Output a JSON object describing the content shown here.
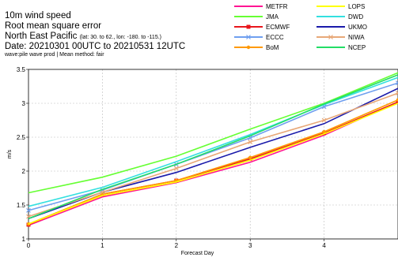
{
  "header": {
    "line1": "10m wind speed",
    "line2": "Root mean square error",
    "region": "North East Pacific",
    "region_detail": "(lat: 30. to 62., lon: -180. to -115.)",
    "date": "Date: 20210301 00UTC to 20210531 12UTC",
    "note": "wave:pile wave prod | Mean method: fair"
  },
  "chart_data": {
    "type": "line",
    "xlabel": "Forecast Day",
    "ylabel": "m/s",
    "xlim": [
      0,
      5
    ],
    "ylim": [
      1,
      3.5
    ],
    "xticks": [
      "0",
      "1",
      "2",
      "3",
      "4"
    ],
    "yticks": [
      "1",
      "1.5",
      "2",
      "2.5",
      "3",
      "3.5"
    ],
    "grid": true,
    "legend_position": "top-right",
    "x": [
      0,
      1,
      2,
      3,
      4,
      5
    ],
    "series": [
      {
        "name": "METFR",
        "color": "#ff1493",
        "marker": "none",
        "values": [
          1.2,
          1.62,
          1.83,
          2.13,
          2.53,
          3.02
        ]
      },
      {
        "name": "JMA",
        "color": "#66ff33",
        "marker": "none",
        "values": [
          1.68,
          1.91,
          2.22,
          2.62,
          3.0,
          3.45
        ]
      },
      {
        "name": "ECMWF",
        "color": "#e8161c",
        "marker": "square",
        "values": [
          1.21,
          1.66,
          1.86,
          2.18,
          2.56,
          3.02
        ]
      },
      {
        "name": "ECCC",
        "color": "#6f9fef",
        "marker": "x",
        "values": [
          1.42,
          1.72,
          2.1,
          2.49,
          2.95,
          3.3
        ]
      },
      {
        "name": "BoM",
        "color": "#ff9900",
        "marker": "circle",
        "values": [
          1.22,
          1.66,
          1.86,
          2.2,
          2.58,
          3.05
        ]
      },
      {
        "name": "LOPS",
        "color": "#ffff00",
        "marker": "none",
        "values": [
          1.22,
          1.64,
          1.84,
          2.16,
          2.55,
          3.0
        ]
      },
      {
        "name": "DWD",
        "color": "#33e0e0",
        "marker": "none",
        "values": [
          1.48,
          1.76,
          2.14,
          2.54,
          2.98,
          3.38
        ]
      },
      {
        "name": "UKMO",
        "color": "#1a1aaa",
        "marker": "none",
        "values": [
          1.3,
          1.69,
          1.98,
          2.35,
          2.7,
          3.22
        ]
      },
      {
        "name": "NIWA",
        "color": "#e8a878",
        "marker": "x",
        "values": [
          1.33,
          1.69,
          2.04,
          2.43,
          2.75,
          3.15
        ]
      },
      {
        "name": "NCEP",
        "color": "#22dd66",
        "marker": "none",
        "values": [
          1.3,
          1.73,
          2.1,
          2.52,
          2.99,
          3.42
        ]
      }
    ]
  }
}
